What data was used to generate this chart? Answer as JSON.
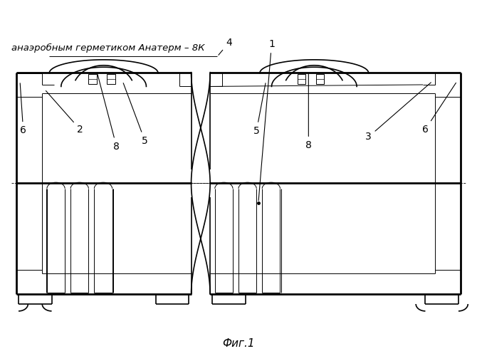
{
  "bg_color": "#ffffff",
  "line_color": "#000000",
  "fig_caption": "Фиг.1",
  "top_text": "анаэробным герметиком Анатерм – 8К"
}
